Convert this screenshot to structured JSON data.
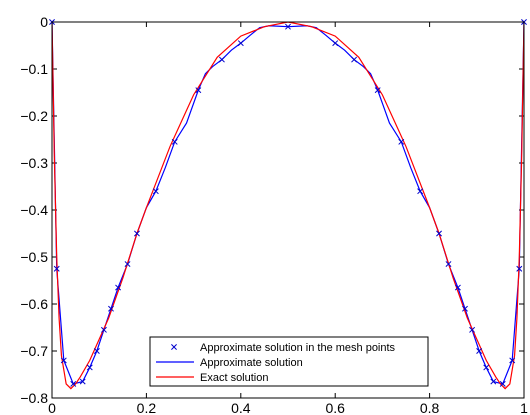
{
  "chart_data": {
    "type": "line",
    "xlim": [
      0,
      1
    ],
    "ylim": [
      -0.8,
      0
    ],
    "grid": false,
    "legend_placement": "bottom-center",
    "x_ticks": [
      "0",
      "0.2",
      "0.4",
      "0.6",
      "0.8",
      "1"
    ],
    "y_ticks": [
      "0",
      "−0.1",
      "−0.2",
      "−0.3",
      "−0.4",
      "−0.5",
      "−0.6",
      "−0.7",
      "−0.8"
    ],
    "series": [
      {
        "name": "Approximate solution in the mesh points",
        "style": "markers-x",
        "color": "#0000cc",
        "x": [
          0,
          0.01,
          0.025,
          0.045,
          0.065,
          0.08,
          0.095,
          0.11,
          0.125,
          0.14,
          0.16,
          0.18,
          0.22,
          0.26,
          0.31,
          0.36,
          0.4,
          0.5,
          0.6,
          0.64,
          0.69,
          0.74,
          0.78,
          0.82,
          0.84,
          0.86,
          0.875,
          0.89,
          0.905,
          0.92,
          0.935,
          0.955,
          0.975,
          0.99,
          1
        ],
        "y": [
          0,
          -0.525,
          -0.72,
          -0.77,
          -0.765,
          -0.735,
          -0.7,
          -0.655,
          -0.61,
          -0.565,
          -0.515,
          -0.45,
          -0.36,
          -0.255,
          -0.145,
          -0.08,
          -0.045,
          -0.01,
          -0.045,
          -0.08,
          -0.145,
          -0.255,
          -0.36,
          -0.45,
          -0.515,
          -0.565,
          -0.61,
          -0.655,
          -0.7,
          -0.735,
          -0.765,
          -0.77,
          -0.72,
          -0.525,
          0
        ]
      },
      {
        "name": "Approximate solution",
        "style": "line",
        "color": "#0000ff",
        "x": [
          0,
          0.01,
          0.025,
          0.045,
          0.065,
          0.08,
          0.095,
          0.11,
          0.125,
          0.14,
          0.16,
          0.18,
          0.2,
          0.22,
          0.24,
          0.26,
          0.285,
          0.31,
          0.325,
          0.34,
          0.36,
          0.38,
          0.4,
          0.42,
          0.44,
          0.46,
          0.5,
          0.54,
          0.56,
          0.58,
          0.6,
          0.62,
          0.64,
          0.66,
          0.675,
          0.69,
          0.715,
          0.74,
          0.76,
          0.78,
          0.8,
          0.82,
          0.84,
          0.86,
          0.875,
          0.89,
          0.905,
          0.92,
          0.935,
          0.955,
          0.975,
          0.99,
          1
        ],
        "y": [
          0,
          -0.525,
          -0.72,
          -0.77,
          -0.765,
          -0.735,
          -0.7,
          -0.655,
          -0.61,
          -0.565,
          -0.515,
          -0.45,
          -0.395,
          -0.36,
          -0.31,
          -0.255,
          -0.215,
          -0.145,
          -0.11,
          -0.095,
          -0.08,
          -0.06,
          -0.045,
          -0.028,
          -0.012,
          -0.008,
          -0.01,
          -0.008,
          -0.012,
          -0.028,
          -0.045,
          -0.06,
          -0.08,
          -0.095,
          -0.11,
          -0.145,
          -0.215,
          -0.255,
          -0.31,
          -0.36,
          -0.395,
          -0.45,
          -0.515,
          -0.565,
          -0.61,
          -0.655,
          -0.7,
          -0.735,
          -0.765,
          -0.77,
          -0.72,
          -0.525,
          0
        ]
      },
      {
        "name": "Exact solution",
        "style": "line",
        "color": "#ff0000",
        "x": [
          0,
          0.005,
          0.01,
          0.015,
          0.02,
          0.03,
          0.04,
          0.05,
          0.06,
          0.08,
          0.1,
          0.12,
          0.15,
          0.18,
          0.2,
          0.25,
          0.3,
          0.35,
          0.4,
          0.45,
          0.5,
          0.55,
          0.6,
          0.65,
          0.7,
          0.75,
          0.8,
          0.82,
          0.85,
          0.88,
          0.9,
          0.92,
          0.94,
          0.95,
          0.96,
          0.97,
          0.98,
          0.985,
          0.99,
          0.995,
          1
        ],
        "y": [
          0,
          -0.29,
          -0.5,
          -0.63,
          -0.71,
          -0.77,
          -0.78,
          -0.77,
          -0.755,
          -0.72,
          -0.675,
          -0.63,
          -0.545,
          -0.45,
          -0.395,
          -0.265,
          -0.155,
          -0.075,
          -0.03,
          -0.01,
          0,
          -0.01,
          -0.03,
          -0.075,
          -0.155,
          -0.265,
          -0.395,
          -0.45,
          -0.545,
          -0.63,
          -0.675,
          -0.72,
          -0.755,
          -0.77,
          -0.78,
          -0.77,
          -0.71,
          -0.63,
          -0.5,
          -0.29,
          0
        ]
      }
    ]
  }
}
